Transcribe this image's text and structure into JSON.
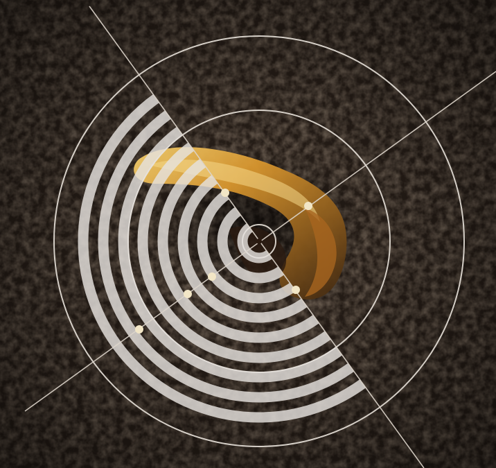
{
  "image": {
    "subject": "rock-on-gravel",
    "overlay": "concentric-ring-graphic"
  },
  "colors": {
    "gravel_dark": "#1c140f",
    "gravel_mid": "#3a2c22",
    "gravel_light": "#5b4737",
    "rock_dark": "#3a2410",
    "rock_mid": "#8a5a1c",
    "rock_bright": "#e0a63a",
    "rock_highlight": "#f4d070",
    "ring_stroke": "#e8e2da",
    "marker": "#f2e6c6"
  }
}
